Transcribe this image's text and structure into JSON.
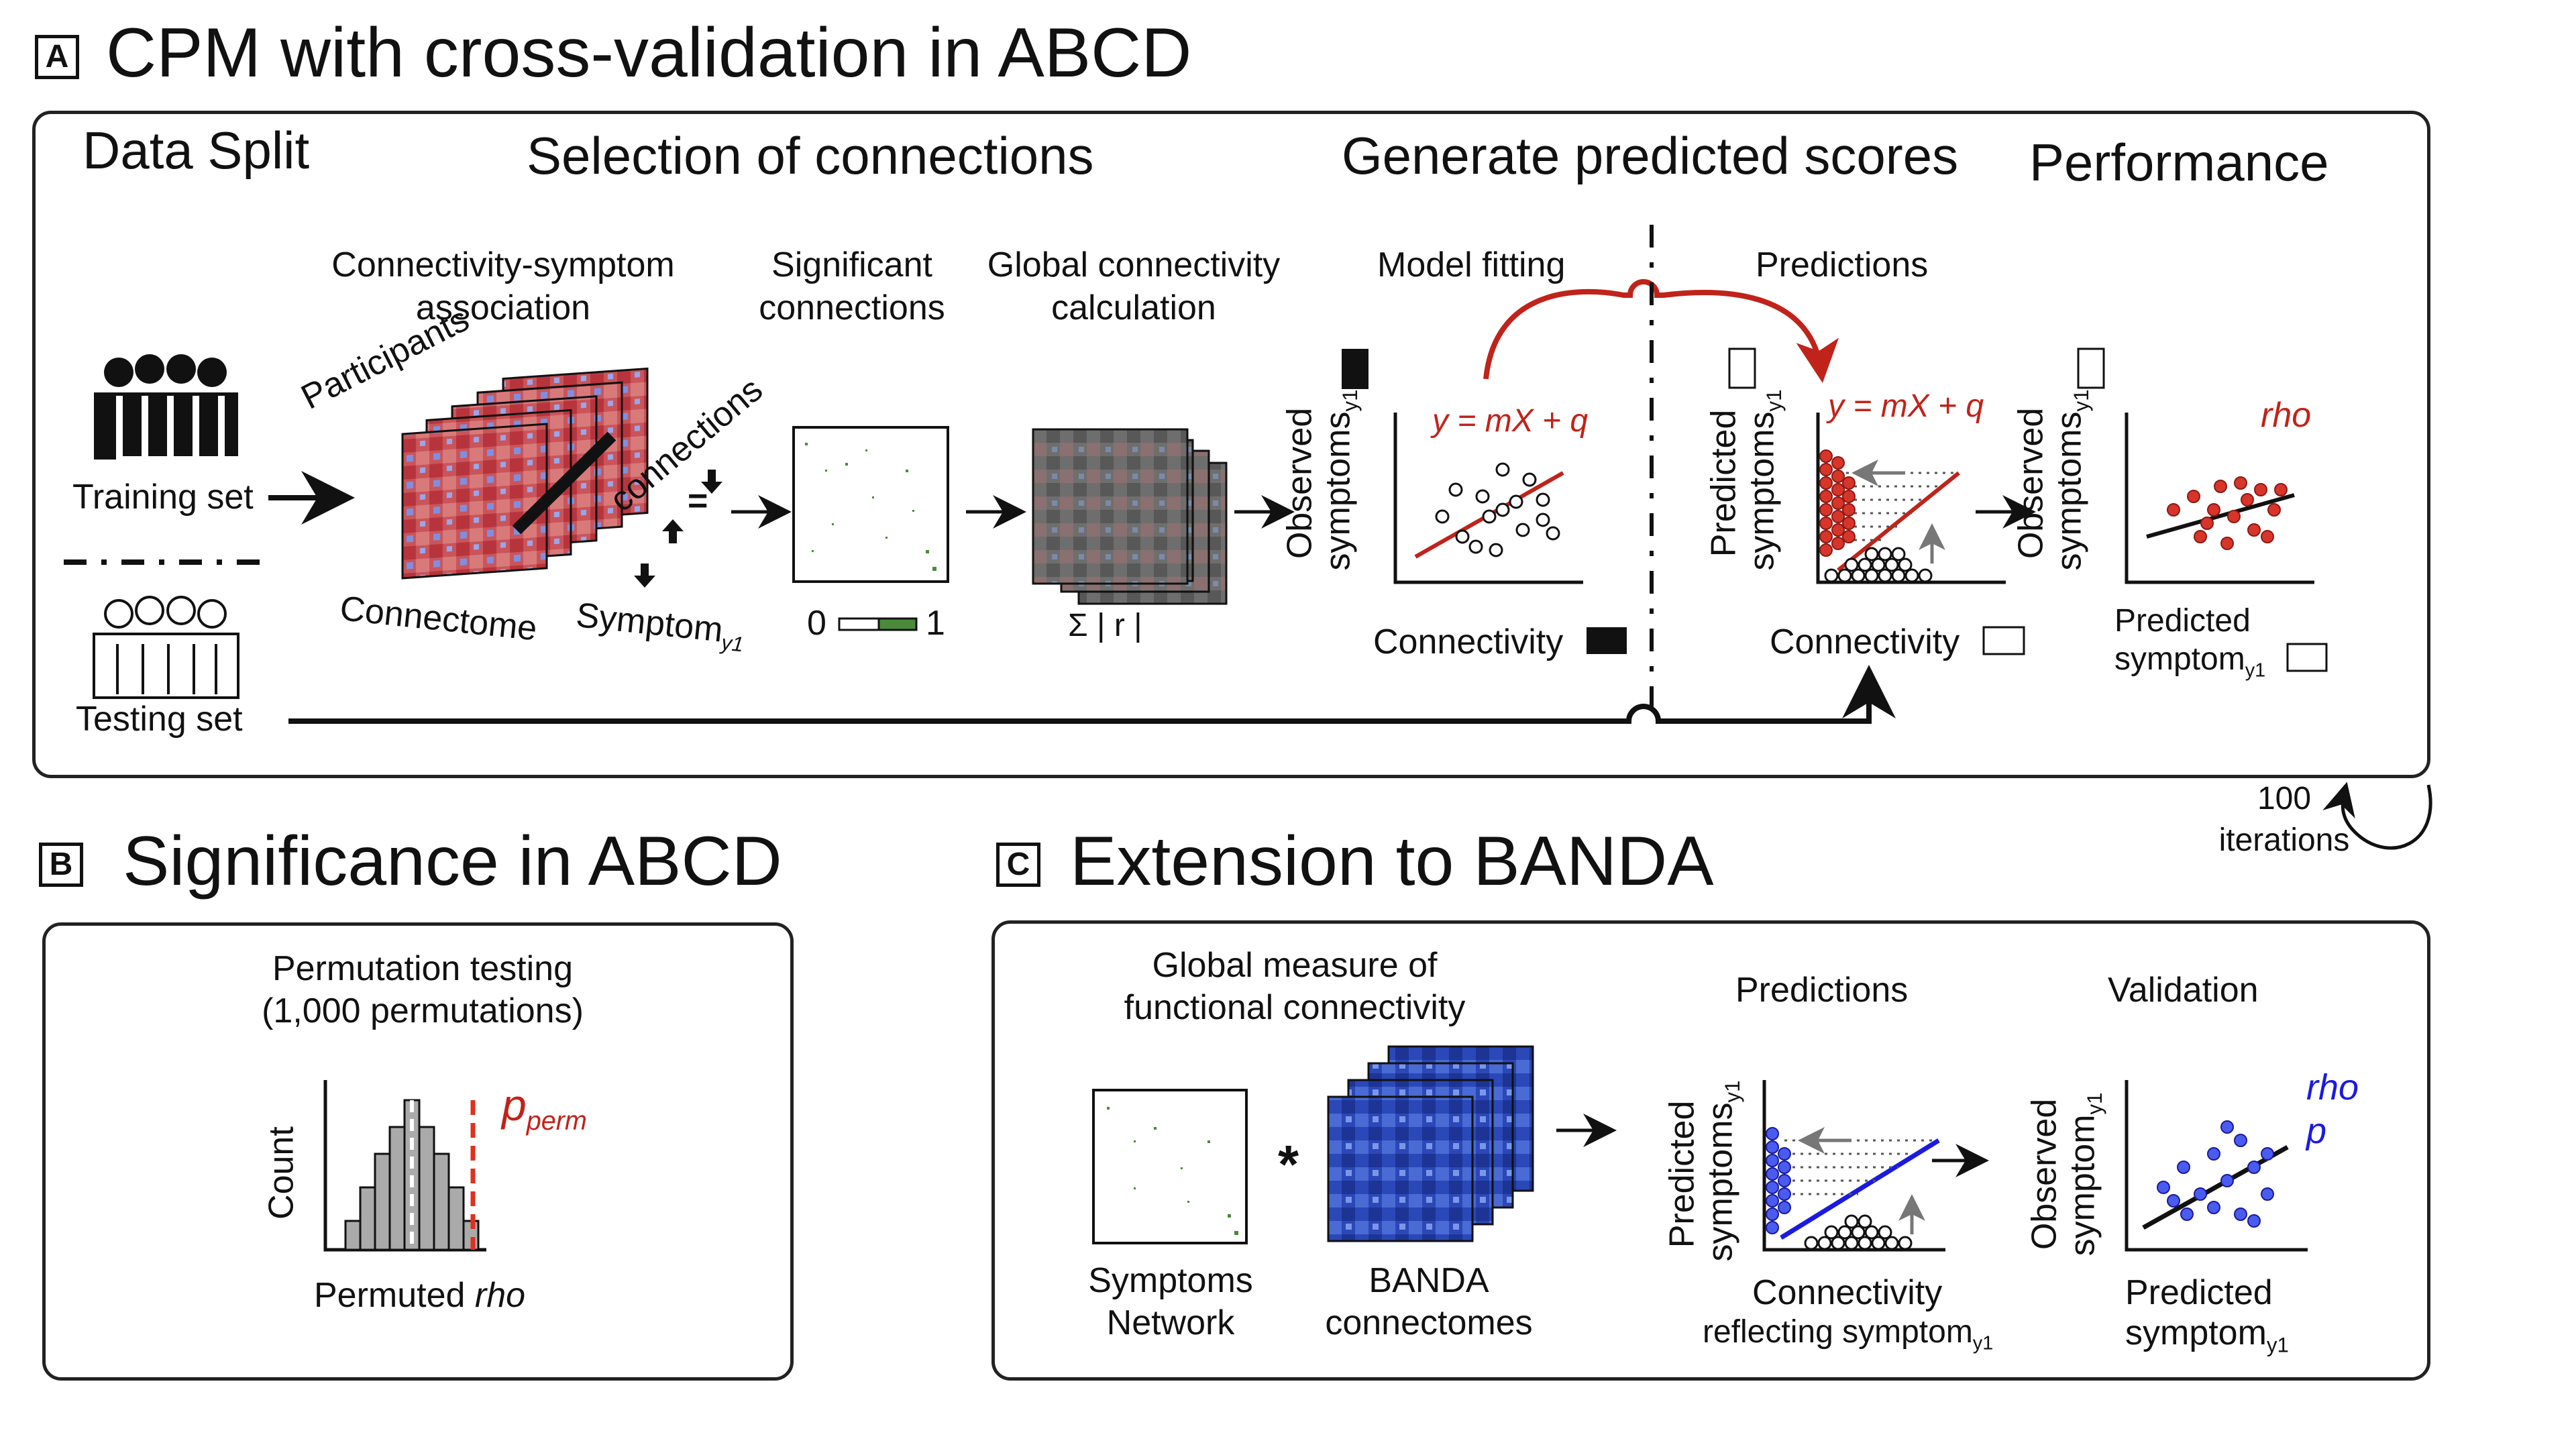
{
  "sections": {
    "a": {
      "letter": "A",
      "title": "CPM with cross-validation in ABCD",
      "data_split": "Data Split",
      "selection": "Selection of connections",
      "generate": "Generate predicted scores",
      "performance": "Performance",
      "conn_sym_1": "Connectivity-symptom",
      "conn_sym_2": "association",
      "sig_1": "Significant",
      "sig_2": "connections",
      "glob_1": "Global connectivity",
      "glob_2": "calculation",
      "model_fitting": "Model fitting",
      "predictions": "Predictions",
      "training_set": "Training set",
      "testing_set": "Testing set",
      "participants": "Participants",
      "connections": "connections",
      "connectome": "Connectome",
      "symptom": "Symptom",
      "symptom_sub": "y1",
      "scale_min": "0",
      "scale_max": "1",
      "sigma": "Σ | r |",
      "observed_symptoms": "Observed",
      "symptoms_label": "symptoms",
      "predicted_label": "Predicted",
      "y1": "y1",
      "equation": "y = mX + q",
      "connectivity": "Connectivity",
      "rho": "rho",
      "predicted_symptom_1": "Predicted",
      "predicted_symptom_2": "symptom",
      "iterations_1": "100",
      "iterations_2": "iterations"
    },
    "b": {
      "letter": "B",
      "title": "Significance in ABCD",
      "perm_1": "Permutation testing",
      "perm_2": "(1,000 permutations)",
      "p": "p",
      "perm_sub": "perm",
      "count": "Count",
      "permuted": "Permuted",
      "rho": "rho"
    },
    "c": {
      "letter": "C",
      "title": "Extension to BANDA",
      "global_1": "Global measure of",
      "global_2": "functional connectivity",
      "predictions": "Predictions",
      "validation": "Validation",
      "symptoms_network_1": "Symptoms",
      "symptoms_network_2": "Network",
      "banda_1": "BANDA",
      "banda_2": "connectomes",
      "star": "*",
      "predicted": "Predicted",
      "symptoms": "symptoms",
      "observed": "Observed",
      "symptom": "symptom",
      "y1": "y1",
      "connectivity": "Connectivity",
      "reflecting": "reflecting symptom",
      "predicted_symptom_1": "Predicted",
      "predicted_symptom_2": "symptom",
      "rho": "rho",
      "p": "p"
    }
  },
  "colors": {
    "red": "#c0231a",
    "blue": "#1a1ae0",
    "dark": "#111111",
    "green": "#4b8a3b"
  }
}
